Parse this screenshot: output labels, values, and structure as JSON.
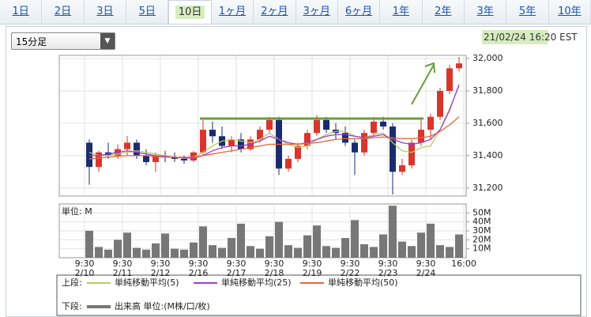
{
  "tabs": [
    "1日",
    "2日",
    "3日",
    "5日",
    "10日",
    "1ヶ月",
    "2ヶ月",
    "3ヶ月",
    "6ヶ月",
    "1年",
    "2年",
    "3年",
    "5年",
    "10年"
  ],
  "interval_select": "15分足",
  "timestamp": "21/02/24 16:20 EST",
  "legend": {
    "upper_label": "上段:",
    "lower_label": "下段:",
    "volume_label": "出来高 単位:(M株/口/枚)"
  },
  "chart_data": [
    {
      "type": "candlestick",
      "open": [
        31480,
        31330,
        31420,
        31400,
        31440,
        31480,
        31400,
        31360,
        31400,
        31390,
        31380,
        31370,
        31420,
        31560,
        31520,
        31460,
        31500,
        31440,
        31500,
        31560,
        31620,
        31320,
        31380,
        31460,
        31540,
        31620,
        31560,
        31540,
        31480,
        31420,
        31540,
        31610,
        31580,
        31300,
        31340,
        31480,
        31560,
        31640,
        31800,
        31940
      ],
      "high": [
        31500,
        31430,
        31480,
        31470,
        31520,
        31500,
        31440,
        31420,
        31430,
        31420,
        31400,
        31430,
        31620,
        31610,
        31580,
        31520,
        31540,
        31520,
        31580,
        31640,
        31640,
        31400,
        31480,
        31560,
        31650,
        31640,
        31600,
        31580,
        31500,
        31560,
        31640,
        31640,
        31600,
        31380,
        31500,
        31620,
        31660,
        31820,
        31960,
        32010
      ],
      "low": [
        31220,
        31300,
        31380,
        31380,
        31400,
        31380,
        31340,
        31300,
        31360,
        31360,
        31350,
        31360,
        31400,
        31480,
        31440,
        31420,
        31420,
        31430,
        31480,
        31540,
        31280,
        31300,
        31360,
        31440,
        31520,
        31540,
        31500,
        31460,
        31280,
        31400,
        31520,
        31560,
        31160,
        31280,
        31320,
        31460,
        31500,
        31620,
        31780,
        31920
      ],
      "close": [
        31330,
        31420,
        31400,
        31440,
        31480,
        31400,
        31360,
        31400,
        31390,
        31380,
        31370,
        31420,
        31560,
        31520,
        31460,
        31500,
        31440,
        31500,
        31560,
        31620,
        31320,
        31380,
        31460,
        31540,
        31620,
        31560,
        31540,
        31480,
        31420,
        31540,
        31610,
        31580,
        31300,
        31340,
        31480,
        31560,
        31640,
        31800,
        31940,
        31970
      ],
      "up_color": "#d8362c",
      "down_color": "#1b2b6e",
      "series": [
        {
          "name": "単純移動平均(5)",
          "color": "#b3cf5e",
          "values": [
            31420,
            31400,
            31400,
            31410,
            31420,
            31430,
            31420,
            31410,
            31400,
            31390,
            31385,
            31390,
            31420,
            31460,
            31490,
            31500,
            31490,
            31480,
            31500,
            31540,
            31500,
            31470,
            31450,
            31460,
            31500,
            31530,
            31550,
            31550,
            31520,
            31510,
            31530,
            31540,
            31480,
            31430,
            31420,
            31450,
            31460,
            31560,
            31690,
            31830
          ]
        },
        {
          "name": "単純移動平均(25)",
          "color": "#9b3fd6",
          "values": [
            31400,
            31400,
            31410,
            31420,
            31430,
            31420,
            31410,
            31400,
            31395,
            31390,
            31385,
            31385,
            31400,
            31430,
            31450,
            31460,
            31460,
            31470,
            31490,
            31520,
            31500,
            31480,
            31470,
            31480,
            31500,
            31520,
            31530,
            31530,
            31520,
            31510,
            31520,
            31530,
            31500,
            31480,
            31470,
            31480,
            31500,
            31560,
            31680,
            31840
          ]
        },
        {
          "name": "単純移動平均(50)",
          "color": "#e8643a",
          "values": [
            31380,
            31385,
            31390,
            31395,
            31400,
            31400,
            31400,
            31395,
            31390,
            31390,
            31390,
            31390,
            31400,
            31410,
            31420,
            31430,
            31440,
            31450,
            31460,
            31470,
            31470,
            31470,
            31470,
            31475,
            31480,
            31490,
            31500,
            31505,
            31505,
            31505,
            31510,
            31515,
            31510,
            31505,
            31505,
            31510,
            31520,
            31550,
            31590,
            31640
          ]
        }
      ],
      "ylim": [
        31150,
        32020
      ],
      "yticks": [
        {
          "value": 31200,
          "label": "31,200"
        },
        {
          "value": 31400,
          "label": "31,400"
        },
        {
          "value": 31600,
          "label": "31,600"
        },
        {
          "value": 31800,
          "label": "31,800"
        },
        {
          "value": 32000,
          "label": "32,000"
        }
      ],
      "grid": true
    },
    {
      "type": "bar",
      "unit_label": "単位: M",
      "name": "出来高",
      "color": "#777777",
      "values": [
        30,
        12,
        9,
        20,
        28,
        11,
        9,
        16,
        27,
        10,
        9,
        17,
        35,
        14,
        11,
        22,
        38,
        13,
        10,
        24,
        40,
        14,
        11,
        25,
        36,
        13,
        11,
        22,
        42,
        15,
        12,
        26,
        58,
        18,
        13,
        28,
        38,
        14,
        12,
        26
      ],
      "ylim": [
        0,
        60
      ],
      "yticks": [
        {
          "value": 10,
          "label": "10M"
        },
        {
          "value": 20,
          "label": "20M"
        },
        {
          "value": 30,
          "label": "30M"
        },
        {
          "value": 40,
          "label": "40M"
        },
        {
          "value": 50,
          "label": "50M"
        }
      ],
      "x_labels": [
        {
          "time": "9:30",
          "date": "2/10"
        },
        {
          "time": "9:30",
          "date": "2/11"
        },
        {
          "time": "9:30",
          "date": "2/12"
        },
        {
          "time": "9:30",
          "date": "2/16"
        },
        {
          "time": "9:30",
          "date": "2/17"
        },
        {
          "time": "9:30",
          "date": "2/18"
        },
        {
          "time": "9:30",
          "date": "2/19"
        },
        {
          "time": "9:30",
          "date": "2/22"
        },
        {
          "time": "9:30",
          "date": "2/23"
        },
        {
          "time": "9:30",
          "date": "2/24"
        },
        {
          "time": "16:00"
        }
      ],
      "grid": true
    }
  ]
}
